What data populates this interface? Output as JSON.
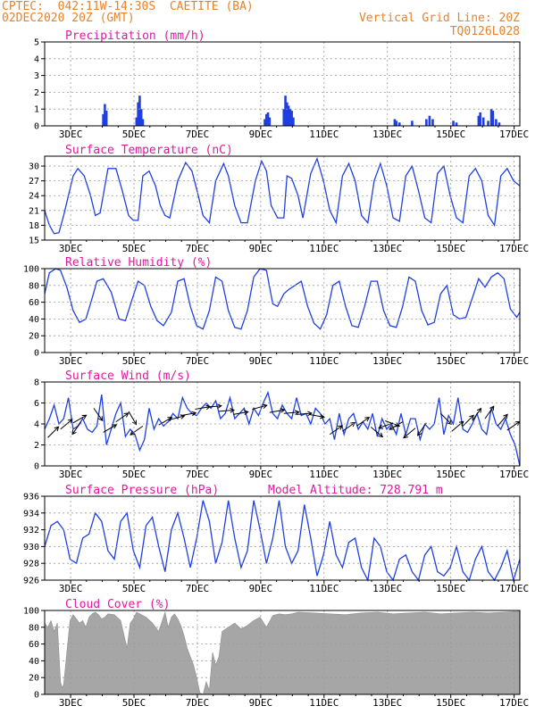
{
  "header": {
    "line1": "CPTEC:  042:11W-14:30S  CAETITE (BA)",
    "line2": "02DEC2020 20Z (GMT)",
    "right1": "Vertical Grid Line: 20Z",
    "right2": "TQ0126L028"
  },
  "colors": {
    "header": "#e8822a",
    "title": "#e0199e",
    "line": "#1f3fe0",
    "cloud": "#a6a6a6",
    "arrow": "#000000"
  },
  "chart_data": [
    {
      "id": "precip",
      "type": "bar",
      "title": "Precipitation (mm/h)",
      "ylim": [
        0,
        5
      ],
      "yticks": [
        0,
        1,
        2,
        3,
        4,
        5
      ],
      "xticks": [
        "3DEC",
        "5DEC",
        "7DEC",
        "9DEC",
        "11DEC",
        "13DEC",
        "15DEC",
        "17DEC"
      ],
      "bars": [
        [
          3.85,
          0.7
        ],
        [
          3.9,
          1.3
        ],
        [
          3.95,
          0.9
        ],
        [
          4.9,
          0.5
        ],
        [
          4.95,
          1.4
        ],
        [
          5.0,
          1.8
        ],
        [
          5.05,
          1.0
        ],
        [
          5.1,
          0.4
        ],
        [
          8.95,
          0.4
        ],
        [
          9.0,
          0.7
        ],
        [
          9.05,
          0.8
        ],
        [
          9.1,
          0.5
        ],
        [
          9.55,
          1.0
        ],
        [
          9.6,
          1.8
        ],
        [
          9.65,
          1.4
        ],
        [
          9.7,
          1.2
        ],
        [
          9.75,
          1.0
        ],
        [
          9.8,
          0.9
        ],
        [
          9.85,
          0.5
        ],
        [
          13.05,
          0.4
        ],
        [
          13.1,
          0.3
        ],
        [
          13.2,
          0.2
        ],
        [
          13.6,
          0.3
        ],
        [
          14.05,
          0.4
        ],
        [
          14.15,
          0.6
        ],
        [
          14.25,
          0.4
        ],
        [
          14.9,
          0.3
        ],
        [
          15.0,
          0.2
        ],
        [
          15.7,
          0.6
        ],
        [
          15.75,
          0.8
        ],
        [
          15.85,
          0.5
        ],
        [
          16.0,
          0.3
        ],
        [
          16.1,
          1.0
        ],
        [
          16.15,
          0.9
        ],
        [
          16.25,
          0.4
        ],
        [
          16.35,
          0.2
        ]
      ]
    },
    {
      "id": "temp",
      "type": "line",
      "title": "Surface Temperature (nC)",
      "ylim": [
        15,
        32
      ],
      "yticks": [
        15,
        18,
        21,
        24,
        27,
        30
      ],
      "xticks": [
        "3DEC",
        "5DEC",
        "7DEC",
        "9DEC",
        "11DEC",
        "13DEC",
        "15DEC",
        "17DEC"
      ],
      "x": [
        2.0,
        2.15,
        2.3,
        2.45,
        2.6,
        2.75,
        2.9,
        3.05,
        3.25,
        3.45,
        3.6,
        3.75,
        4.0,
        4.25,
        4.45,
        4.65,
        4.8,
        4.95,
        5.1,
        5.3,
        5.5,
        5.65,
        5.8,
        5.95,
        6.2,
        6.45,
        6.65,
        6.85,
        7.0,
        7.2,
        7.4,
        7.65,
        7.8,
        8.0,
        8.2,
        8.4,
        8.65,
        8.85,
        9.0,
        9.15,
        9.35,
        9.55,
        9.65,
        9.8,
        10.0,
        10.15,
        10.4,
        10.6,
        10.8,
        11.0,
        11.2,
        11.4,
        11.6,
        11.8,
        12.0,
        12.2,
        12.4,
        12.6,
        12.8,
        13.0,
        13.2,
        13.4,
        13.6,
        13.8,
        14.0,
        14.2,
        14.4,
        14.6,
        14.8,
        15.0,
        15.2,
        15.4,
        15.6,
        15.8,
        16.0,
        16.2,
        16.4,
        16.6,
        16.8,
        17.0
      ],
      "values": [
        21,
        18,
        16.3,
        16.5,
        20,
        24,
        28,
        29.5,
        28,
        24,
        20,
        20.5,
        29.5,
        29.5,
        25,
        20,
        19,
        19,
        28,
        29,
        26,
        22,
        20,
        19.5,
        27,
        30.7,
        29,
        24,
        20,
        18.5,
        27,
        30.5,
        28,
        22,
        18.5,
        18.5,
        27,
        31,
        29,
        22,
        19.5,
        19.5,
        28,
        27.5,
        24,
        19.5,
        28.5,
        31.5,
        27,
        21,
        18.5,
        28,
        30.5,
        27,
        20,
        18.5,
        27,
        30.5,
        26,
        19.5,
        18.8,
        28,
        30,
        25,
        19.5,
        18.5,
        28.5,
        30,
        24,
        19.5,
        18.5,
        28,
        29.5,
        27,
        20,
        18,
        28,
        29.5,
        27,
        26
      ]
    },
    {
      "id": "rh",
      "type": "line",
      "title": "Relative Humidity (%)",
      "ylim": [
        0,
        100
      ],
      "yticks": [
        0,
        20,
        40,
        60,
        80,
        100
      ],
      "xticks": [
        "3DEC",
        "5DEC",
        "7DEC",
        "9DEC",
        "11DEC",
        "13DEC",
        "15DEC",
        "17DEC"
      ],
      "x": [
        2.0,
        2.15,
        2.35,
        2.5,
        2.7,
        2.9,
        3.1,
        3.3,
        3.5,
        3.65,
        3.85,
        4.1,
        4.35,
        4.55,
        4.75,
        4.95,
        5.15,
        5.35,
        5.55,
        5.75,
        6.0,
        6.2,
        6.4,
        6.6,
        6.8,
        7.0,
        7.2,
        7.4,
        7.6,
        7.8,
        8.0,
        8.2,
        8.4,
        8.6,
        8.8,
        9.0,
        9.2,
        9.35,
        9.55,
        9.7,
        9.9,
        10.1,
        10.3,
        10.5,
        10.7,
        10.9,
        11.1,
        11.3,
        11.5,
        11.7,
        11.9,
        12.1,
        12.3,
        12.5,
        12.7,
        12.9,
        13.1,
        13.3,
        13.5,
        13.7,
        13.9,
        14.1,
        14.3,
        14.5,
        14.7,
        14.9,
        15.1,
        15.3,
        15.5,
        15.7,
        15.9,
        16.1,
        16.3,
        16.5,
        16.7,
        16.9,
        17.0
      ],
      "values": [
        70,
        95,
        100,
        98,
        78,
        50,
        36,
        40,
        65,
        85,
        88,
        72,
        40,
        38,
        62,
        85,
        80,
        55,
        38,
        32,
        48,
        85,
        88,
        55,
        32,
        28,
        50,
        90,
        85,
        50,
        30,
        28,
        50,
        90,
        100,
        98,
        58,
        55,
        70,
        75,
        80,
        85,
        55,
        35,
        28,
        45,
        80,
        85,
        55,
        32,
        30,
        55,
        85,
        85,
        50,
        32,
        30,
        55,
        90,
        85,
        50,
        33,
        36,
        70,
        80,
        45,
        40,
        42,
        65,
        88,
        78,
        90,
        95,
        88,
        52,
        42,
        48
      ]
    },
    {
      "id": "wind",
      "type": "line",
      "title": "Surface Wind (m/s)",
      "ylim": [
        0,
        8
      ],
      "yticks": [
        0,
        2,
        4,
        6,
        8
      ],
      "xticks": [
        "3DEC",
        "5DEC",
        "7DEC",
        "9DEC",
        "11DEC",
        "13DEC",
        "15DEC",
        "17DEC"
      ],
      "x": [
        2.0,
        2.15,
        2.3,
        2.45,
        2.6,
        2.75,
        2.9,
        3.05,
        3.2,
        3.35,
        3.5,
        3.65,
        3.8,
        3.95,
        4.1,
        4.25,
        4.4,
        4.55,
        4.7,
        4.85,
        5.0,
        5.15,
        5.3,
        5.45,
        5.6,
        5.75,
        5.9,
        6.05,
        6.2,
        6.35,
        6.5,
        6.65,
        6.8,
        6.95,
        7.1,
        7.25,
        7.4,
        7.55,
        7.7,
        7.85,
        8.0,
        8.15,
        8.3,
        8.45,
        8.6,
        8.75,
        8.9,
        9.05,
        9.2,
        9.35,
        9.5,
        9.65,
        9.8,
        9.95,
        10.1,
        10.25,
        10.4,
        10.55,
        10.7,
        10.85,
        11.0,
        11.15,
        11.3,
        11.45,
        11.6,
        11.75,
        11.9,
        12.05,
        12.2,
        12.35,
        12.5,
        12.65,
        12.8,
        12.95,
        13.1,
        13.25,
        13.4,
        13.55,
        13.7,
        13.85,
        14.0,
        14.15,
        14.3,
        14.45,
        14.6,
        14.75,
        14.9,
        15.05,
        15.2,
        15.35,
        15.5,
        15.65,
        15.8,
        15.95,
        16.1,
        16.25,
        16.4,
        16.55,
        16.7,
        16.85,
        17.0
      ],
      "values": [
        3.5,
        4.5,
        5.8,
        4,
        4.5,
        6.5,
        3.5,
        3.8,
        4.5,
        3.5,
        3.2,
        3.8,
        6.8,
        2,
        3.5,
        5,
        6,
        2.8,
        3.5,
        3,
        1.5,
        2.5,
        5.5,
        3.5,
        4.5,
        3.8,
        4.2,
        5,
        4.5,
        6.5,
        5.5,
        5,
        4.8,
        5.5,
        6,
        5.5,
        6.2,
        4.5,
        5,
        6.5,
        4.5,
        5,
        5.5,
        4,
        5.5,
        4.8,
        6,
        7,
        5,
        4.5,
        5.8,
        5,
        4.5,
        6.5,
        4.8,
        5,
        4,
        5.5,
        5,
        4,
        4.5,
        2.5,
        5,
        3,
        4.5,
        5,
        3.5,
        4.2,
        3.5,
        5,
        2.8,
        4.5,
        3.5,
        4,
        3,
        5,
        3,
        4.5,
        4.5,
        2.5,
        4,
        3.5,
        4,
        6.5,
        3,
        4.8,
        4,
        6.5,
        3.5,
        3.2,
        4,
        5,
        3.5,
        3,
        5.5,
        4,
        3.5,
        4.5,
        3,
        2,
        0
      ],
      "vectors": [
        [
          2.1,
          2.7,
          45
        ],
        [
          2.5,
          3.5,
          40
        ],
        [
          2.9,
          4.1,
          30
        ],
        [
          3.15,
          4.2,
          -125
        ],
        [
          3.55,
          5.5,
          -55
        ],
        [
          3.85,
          3.2,
          30
        ],
        [
          4.25,
          4.2,
          35
        ],
        [
          4.65,
          5.2,
          -60
        ],
        [
          5.1,
          3.8,
          -145
        ],
        [
          5.6,
          3.9,
          30
        ],
        [
          5.95,
          4.4,
          15
        ],
        [
          6.3,
          4.8,
          10
        ],
        [
          6.75,
          5.4,
          10
        ],
        [
          7.1,
          5.6,
          5
        ],
        [
          7.5,
          5.2,
          5
        ],
        [
          7.95,
          4.9,
          10
        ],
        [
          8.55,
          5.4,
          15
        ],
        [
          9.1,
          5.1,
          10
        ],
        [
          9.55,
          5.0,
          5
        ],
        [
          9.95,
          4.9,
          5
        ],
        [
          10.35,
          4.9,
          -10
        ],
        [
          11.0,
          3.0,
          35
        ],
        [
          11.4,
          3.3,
          35
        ],
        [
          11.85,
          3.8,
          35
        ],
        [
          12.3,
          3.7,
          -40
        ],
        [
          12.75,
          4.3,
          -20
        ],
        [
          13.0,
          4.1,
          -160
        ],
        [
          13.3,
          4.2,
          -150
        ],
        [
          13.7,
          3.6,
          -140
        ],
        [
          14.05,
          4.1,
          -125
        ],
        [
          14.5,
          5.0,
          -45
        ],
        [
          14.85,
          3.3,
          40
        ],
        [
          15.2,
          3.8,
          45
        ],
        [
          15.5,
          4.3,
          55
        ],
        [
          15.9,
          4.5,
          55
        ],
        [
          16.3,
          3.8,
          50
        ],
        [
          16.6,
          3.4,
          35
        ]
      ]
    },
    {
      "id": "pres",
      "type": "line",
      "title": "Surface Pressure (hPa)",
      "annotation": "Model Altitude: 728.791 m",
      "ylim": [
        926,
        936
      ],
      "yticks": [
        926,
        928,
        930,
        932,
        934,
        936
      ],
      "xticks": [
        "3DEC",
        "5DEC",
        "7DEC",
        "9DEC",
        "11DEC",
        "13DEC",
        "15DEC",
        "17DEC"
      ],
      "x": [
        2.0,
        2.2,
        2.4,
        2.6,
        2.8,
        3.0,
        3.2,
        3.4,
        3.6,
        3.8,
        4.0,
        4.2,
        4.4,
        4.6,
        4.8,
        5.0,
        5.2,
        5.4,
        5.6,
        5.8,
        6.0,
        6.2,
        6.4,
        6.6,
        6.8,
        7.0,
        7.2,
        7.4,
        7.6,
        7.8,
        8.0,
        8.2,
        8.4,
        8.6,
        8.8,
        9.0,
        9.2,
        9.4,
        9.6,
        9.8,
        10.0,
        10.2,
        10.4,
        10.6,
        10.8,
        11.0,
        11.2,
        11.4,
        11.6,
        11.8,
        12.0,
        12.2,
        12.4,
        12.6,
        12.8,
        13.0,
        13.2,
        13.4,
        13.6,
        13.8,
        14.0,
        14.2,
        14.4,
        14.6,
        14.8,
        15.0,
        15.2,
        15.4,
        15.6,
        15.8,
        16.0,
        16.2,
        16.4,
        16.6,
        16.8,
        17.0
      ],
      "values": [
        930,
        932.5,
        933,
        932,
        928.5,
        928,
        931,
        931.5,
        934,
        933,
        929.5,
        928.5,
        933,
        934,
        929.5,
        927.5,
        932.5,
        933.5,
        930,
        927,
        932,
        934,
        931,
        927.5,
        931,
        935.5,
        933,
        928,
        930.5,
        935.5,
        931,
        927.5,
        929.5,
        935.5,
        932,
        928,
        931,
        935.5,
        930,
        928,
        929.5,
        935,
        931,
        926.5,
        929,
        933,
        929,
        927.5,
        930.5,
        931,
        927.5,
        926,
        931,
        930,
        927,
        925.5,
        928.5,
        929,
        927,
        926,
        929,
        930,
        927,
        926.5,
        927.5,
        930,
        927,
        926,
        928.5,
        930,
        927,
        926,
        927.5,
        929.5,
        926,
        928.5
      ]
    },
    {
      "id": "cloud",
      "type": "area",
      "title": "Cloud Cover (%)",
      "ylim": [
        0,
        100
      ],
      "yticks": [
        0,
        20,
        40,
        60,
        80,
        100
      ],
      "xticks": [
        "3DEC",
        "5DEC",
        "7DEC",
        "9DEC",
        "11DEC",
        "13DEC",
        "15DEC",
        "17DEC"
      ],
      "x": [
        2.0,
        2.1,
        2.2,
        2.3,
        2.4,
        2.5,
        2.55,
        2.6,
        2.7,
        2.8,
        2.9,
        3.0,
        3.1,
        3.2,
        3.3,
        3.4,
        3.5,
        3.6,
        3.7,
        3.8,
        3.9,
        4.0,
        4.2,
        4.4,
        4.6,
        4.7,
        4.8,
        4.9,
        5.0,
        5.2,
        5.4,
        5.6,
        5.8,
        5.9,
        6.0,
        6.1,
        6.2,
        6.3,
        6.4,
        6.5,
        6.6,
        6.7,
        6.8,
        6.9,
        7.0,
        7.1,
        7.2,
        7.3,
        7.4,
        7.5,
        7.6,
        7.8,
        8.0,
        8.2,
        8.4,
        8.6,
        8.8,
        9.0,
        9.2,
        9.4,
        9.6,
        9.8,
        10.0,
        10.5,
        11.0,
        11.5,
        12.0,
        12.5,
        13.0,
        13.5,
        14.0,
        14.5,
        15.0,
        15.5,
        16.0,
        16.5,
        17.0
      ],
      "values": [
        85,
        80,
        88,
        75,
        85,
        15,
        8,
        12,
        50,
        88,
        95,
        90,
        85,
        88,
        80,
        92,
        96,
        98,
        95,
        90,
        92,
        96,
        95,
        88,
        55,
        85,
        90,
        98,
        96,
        92,
        85,
        75,
        98,
        80,
        92,
        96,
        90,
        82,
        70,
        55,
        45,
        35,
        20,
        2,
        0,
        15,
        5,
        50,
        35,
        45,
        75,
        80,
        85,
        78,
        82,
        88,
        92,
        80,
        94,
        96,
        95,
        96,
        98,
        97,
        96,
        95,
        97,
        98,
        96,
        97,
        98,
        96,
        97,
        98,
        97,
        98,
        99
      ]
    }
  ]
}
